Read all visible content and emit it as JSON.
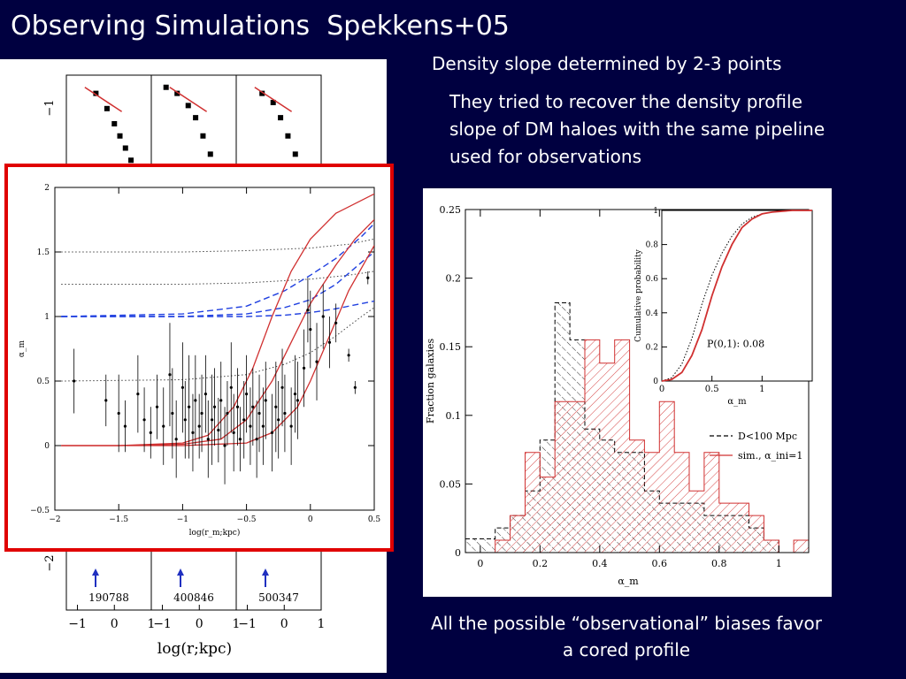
{
  "slide": {
    "title": "Observing Simulations  Spekkens+05",
    "note_top": "Density slope determined by 2-3 points",
    "note_para": "They tried to recover the density profile slope of DM haloes with the same pipeline used for observations",
    "note_bottom": "All the possible “observational” biases favor a cored profile"
  },
  "background_color": "#000040",
  "highlight_color": "#e00000",
  "chart_data": [
    {
      "id": "background-mini-panels",
      "type": "scatter",
      "xlabel": "log(r;kpc)",
      "panel_labels": [
        "190788",
        "400846",
        "500347"
      ],
      "x_tick_labels": [
        "−1",
        "0",
        "1"
      ],
      "y_tick_labels": [
        "−1",
        "−2"
      ],
      "series": [
        {
          "values": [
            [
              -0.5,
              -1.1
            ],
            [
              -0.2,
              -1.35
            ],
            [
              0.0,
              -1.6
            ],
            [
              0.15,
              -1.8
            ],
            [
              0.3,
              -2.0
            ],
            [
              0.45,
              -2.2
            ]
          ]
        },
        {
          "values": [
            [
              -0.9,
              -1.0
            ],
            [
              -0.6,
              -1.1
            ],
            [
              -0.3,
              -1.3
            ],
            [
              -0.1,
              -1.5
            ],
            [
              0.1,
              -1.8
            ],
            [
              0.3,
              -2.1
            ]
          ]
        },
        {
          "values": [
            [
              -0.6,
              -1.1
            ],
            [
              -0.3,
              -1.25
            ],
            [
              -0.1,
              -1.5
            ],
            [
              0.1,
              -1.8
            ],
            [
              0.3,
              -2.1
            ]
          ]
        }
      ]
    },
    {
      "id": "alpha-vs-radius",
      "type": "scatter",
      "xlabel": "log(r_m;kpc)",
      "ylabel": "α_m",
      "xlim": [
        -2,
        0.5
      ],
      "ylim": [
        -0.5,
        2
      ],
      "x_ticks": [
        -2,
        -1.5,
        -1,
        -0.5,
        0,
        0.5
      ],
      "y_ticks": [
        -0.5,
        0,
        0.5,
        1,
        1.5,
        2
      ],
      "x_tick_labels": [
        "−2",
        "−1.5",
        "−1",
        "−0.5",
        "0",
        "0.5"
      ],
      "y_tick_labels": [
        "−0.5",
        "0",
        "0.5",
        "1",
        "1.5",
        "2"
      ],
      "reference_colors": {
        "red": "#d03030",
        "blue": "#2040e0",
        "dotted": "#444444"
      },
      "red_curves": [
        [
          [
            -1.95,
            0.0
          ],
          [
            -1.5,
            0.0
          ],
          [
            -1.0,
            0.02
          ],
          [
            -0.8,
            0.08
          ],
          [
            -0.6,
            0.3
          ],
          [
            -0.45,
            0.6
          ],
          [
            -0.3,
            1.0
          ],
          [
            -0.15,
            1.35
          ],
          [
            0.0,
            1.6
          ],
          [
            0.2,
            1.8
          ],
          [
            0.5,
            1.95
          ]
        ],
        [
          [
            -1.95,
            0.0
          ],
          [
            -1.5,
            0.0
          ],
          [
            -1.0,
            0.01
          ],
          [
            -0.7,
            0.05
          ],
          [
            -0.5,
            0.2
          ],
          [
            -0.3,
            0.5
          ],
          [
            -0.15,
            0.8
          ],
          [
            0.0,
            1.1
          ],
          [
            0.2,
            1.4
          ],
          [
            0.35,
            1.6
          ],
          [
            0.5,
            1.75
          ]
        ],
        [
          [
            -1.95,
            0.0
          ],
          [
            -1.5,
            0.0
          ],
          [
            -1.0,
            0.0
          ],
          [
            -0.5,
            0.02
          ],
          [
            -0.3,
            0.1
          ],
          [
            -0.1,
            0.3
          ],
          [
            0.0,
            0.5
          ],
          [
            0.15,
            0.85
          ],
          [
            0.3,
            1.2
          ],
          [
            0.5,
            1.55
          ]
        ]
      ],
      "blue_curves": [
        [
          [
            -1.95,
            1.0
          ],
          [
            -1.0,
            1.02
          ],
          [
            -0.5,
            1.08
          ],
          [
            -0.2,
            1.2
          ],
          [
            0.0,
            1.32
          ],
          [
            0.2,
            1.45
          ],
          [
            0.4,
            1.62
          ],
          [
            0.5,
            1.72
          ]
        ],
        [
          [
            -1.95,
            1.0
          ],
          [
            -1.0,
            1.0
          ],
          [
            -0.5,
            1.02
          ],
          [
            -0.2,
            1.07
          ],
          [
            0.0,
            1.13
          ],
          [
            0.2,
            1.25
          ],
          [
            0.4,
            1.42
          ],
          [
            0.5,
            1.5
          ]
        ],
        [
          [
            -1.95,
            1.0
          ],
          [
            -1.0,
            1.0
          ],
          [
            -0.5,
            1.0
          ],
          [
            -0.2,
            1.01
          ],
          [
            0.0,
            1.03
          ],
          [
            0.2,
            1.06
          ],
          [
            0.4,
            1.1
          ],
          [
            0.5,
            1.12
          ]
        ]
      ],
      "dotted_curves": [
        [
          [
            -1.95,
            1.5
          ],
          [
            -1.0,
            1.5
          ],
          [
            -0.5,
            1.51
          ],
          [
            0.0,
            1.53
          ],
          [
            0.3,
            1.56
          ],
          [
            0.5,
            1.6
          ]
        ],
        [
          [
            -1.95,
            1.25
          ],
          [
            -1.0,
            1.25
          ],
          [
            -0.5,
            1.26
          ],
          [
            0.0,
            1.29
          ],
          [
            0.3,
            1.32
          ],
          [
            0.5,
            1.35
          ]
        ],
        [
          [
            -1.95,
            0.5
          ],
          [
            -1.0,
            0.51
          ],
          [
            -0.5,
            0.55
          ],
          [
            -0.2,
            0.63
          ],
          [
            0.0,
            0.72
          ],
          [
            0.2,
            0.85
          ],
          [
            0.4,
            1.0
          ],
          [
            0.5,
            1.07
          ]
        ]
      ],
      "points": [
        {
          "x": -1.85,
          "y": 0.5,
          "err": 0.25
        },
        {
          "x": -1.6,
          "y": 0.35,
          "err": 0.2
        },
        {
          "x": -1.5,
          "y": 0.25,
          "err": 0.3
        },
        {
          "x": -1.45,
          "y": 0.15,
          "err": 0.2
        },
        {
          "x": -1.35,
          "y": 0.4,
          "err": 0.3
        },
        {
          "x": -1.3,
          "y": 0.2,
          "err": 0.25
        },
        {
          "x": -1.25,
          "y": 0.1,
          "err": 0.2
        },
        {
          "x": -1.2,
          "y": 0.3,
          "err": 0.25
        },
        {
          "x": -1.15,
          "y": 0.15,
          "err": 0.3
        },
        {
          "x": -1.1,
          "y": 0.55,
          "err": 0.4
        },
        {
          "x": -1.08,
          "y": 0.25,
          "err": 0.35
        },
        {
          "x": -1.05,
          "y": 0.05,
          "err": 0.3
        },
        {
          "x": -1.0,
          "y": 0.45,
          "err": 0.35
        },
        {
          "x": -0.98,
          "y": 0.2,
          "err": 0.3
        },
        {
          "x": -0.95,
          "y": 0.3,
          "err": 0.4
        },
        {
          "x": -0.92,
          "y": 0.1,
          "err": 0.3
        },
        {
          "x": -0.9,
          "y": 0.35,
          "err": 0.35
        },
        {
          "x": -0.87,
          "y": 0.15,
          "err": 0.25
        },
        {
          "x": -0.85,
          "y": 0.25,
          "err": 0.3
        },
        {
          "x": -0.82,
          "y": 0.4,
          "err": 0.3
        },
        {
          "x": -0.8,
          "y": 0.05,
          "err": 0.3
        },
        {
          "x": -0.77,
          "y": 0.2,
          "err": 0.35
        },
        {
          "x": -0.75,
          "y": 0.3,
          "err": 0.3
        },
        {
          "x": -0.72,
          "y": 0.12,
          "err": 0.25
        },
        {
          "x": -0.7,
          "y": 0.35,
          "err": 0.3
        },
        {
          "x": -0.67,
          "y": 0.0,
          "err": 0.3
        },
        {
          "x": -0.65,
          "y": 0.25,
          "err": 0.25
        },
        {
          "x": -0.62,
          "y": 0.45,
          "err": 0.35
        },
        {
          "x": -0.6,
          "y": 0.1,
          "err": 0.3
        },
        {
          "x": -0.57,
          "y": 0.3,
          "err": 0.3
        },
        {
          "x": -0.55,
          "y": 0.05,
          "err": 0.25
        },
        {
          "x": -0.52,
          "y": 0.2,
          "err": 0.3
        },
        {
          "x": -0.5,
          "y": 0.4,
          "err": 0.3
        },
        {
          "x": -0.47,
          "y": 0.15,
          "err": 0.3
        },
        {
          "x": -0.45,
          "y": 0.3,
          "err": 0.3
        },
        {
          "x": -0.42,
          "y": 0.05,
          "err": 0.3
        },
        {
          "x": -0.4,
          "y": 0.25,
          "err": 0.3
        },
        {
          "x": -0.37,
          "y": 0.15,
          "err": 0.3
        },
        {
          "x": -0.35,
          "y": 0.35,
          "err": 0.3
        },
        {
          "x": -0.3,
          "y": 0.1,
          "err": 0.3
        },
        {
          "x": -0.27,
          "y": 0.3,
          "err": 0.35
        },
        {
          "x": -0.25,
          "y": 0.2,
          "err": 0.3
        },
        {
          "x": -0.22,
          "y": 0.45,
          "err": 0.3
        },
        {
          "x": -0.2,
          "y": 0.25,
          "err": 0.3
        },
        {
          "x": -0.15,
          "y": 0.15,
          "err": 0.3
        },
        {
          "x": -0.12,
          "y": 0.4,
          "err": 0.3
        },
        {
          "x": -0.1,
          "y": 0.35,
          "err": 0.3
        },
        {
          "x": -0.05,
          "y": 0.6,
          "err": 0.3
        },
        {
          "x": -0.02,
          "y": 1.05,
          "err": 0.25
        },
        {
          "x": 0.0,
          "y": 0.9,
          "err": 0.3
        },
        {
          "x": 0.05,
          "y": 0.65,
          "err": 0.3
        },
        {
          "x": 0.1,
          "y": 1.0,
          "err": 0.25
        },
        {
          "x": 0.15,
          "y": 0.8,
          "err": 0.2
        },
        {
          "x": 0.2,
          "y": 0.95,
          "err": 0.15
        },
        {
          "x": 0.3,
          "y": 0.7,
          "err": 0.05
        },
        {
          "x": 0.35,
          "y": 0.45,
          "err": 0.05
        },
        {
          "x": 0.45,
          "y": 1.3,
          "err": 0.05
        }
      ]
    },
    {
      "id": "fraction-histogram",
      "type": "bar",
      "xlabel": "α_m",
      "ylabel": "Fraction galaxies",
      "xlim": [
        -0.05,
        1.1
      ],
      "ylim": [
        0,
        0.25
      ],
      "x_ticks": [
        0,
        0.2,
        0.4,
        0.6,
        0.8,
        1
      ],
      "y_ticks": [
        0,
        0.05,
        0.1,
        0.15,
        0.2,
        0.25
      ],
      "x_tick_labels": [
        "0",
        "0.2",
        "0.4",
        "0.6",
        "0.8",
        "1"
      ],
      "y_tick_labels": [
        "0",
        "0.05",
        "0.1",
        "0.15",
        "0.2",
        "0.25"
      ],
      "bin_edges": [
        -0.05,
        0.0,
        0.05,
        0.1,
        0.15,
        0.2,
        0.25,
        0.3,
        0.35,
        0.4,
        0.45,
        0.5,
        0.55,
        0.6,
        0.65,
        0.7,
        0.75,
        0.8,
        0.85,
        0.9,
        0.95,
        1.0,
        1.05,
        1.1
      ],
      "series": [
        {
          "name": "D<100 Mpc",
          "color": "#000000",
          "values": [
            0.01,
            0.01,
            0.018,
            0.027,
            0.045,
            0.082,
            0.182,
            0.155,
            0.09,
            0.082,
            0.073,
            0.073,
            0.045,
            0.036,
            0.036,
            0.036,
            0.027,
            0.027,
            0.027,
            0.018,
            0.009,
            0,
            0
          ]
        },
        {
          "name": "sim., α_ini=1",
          "color": "#d03030",
          "values": [
            0,
            0,
            0.009,
            0.027,
            0.073,
            0.055,
            0.11,
            0.11,
            0.155,
            0.138,
            0.155,
            0.082,
            0.073,
            0.11,
            0.073,
            0.045,
            0.073,
            0.036,
            0.036,
            0.027,
            0.009,
            0,
            0.009
          ]
        }
      ],
      "legend_placement": "lower-right"
    },
    {
      "id": "cumulative-inset",
      "type": "line",
      "xlabel": "α_m",
      "ylabel": "Cumulative probability",
      "xlim": [
        0,
        1.5
      ],
      "ylim": [
        0,
        1
      ],
      "x_ticks": [
        0,
        0.5,
        1
      ],
      "y_ticks": [
        0,
        0.2,
        0.4,
        0.6,
        0.8,
        1
      ],
      "x_tick_labels": [
        "0",
        "0.5",
        "1"
      ],
      "y_tick_labels": [
        "0",
        "0.2",
        "0.4",
        "0.6",
        "0.8",
        "1"
      ],
      "annotation": "P(0,1):  0.08",
      "series": [
        {
          "color": "#000000",
          "values": [
            [
              0.0,
              0.0
            ],
            [
              0.1,
              0.02
            ],
            [
              0.2,
              0.1
            ],
            [
              0.3,
              0.25
            ],
            [
              0.4,
              0.45
            ],
            [
              0.5,
              0.62
            ],
            [
              0.6,
              0.75
            ],
            [
              0.7,
              0.85
            ],
            [
              0.8,
              0.92
            ],
            [
              0.9,
              0.96
            ],
            [
              1.0,
              0.98
            ],
            [
              1.1,
              0.99
            ],
            [
              1.3,
              1.0
            ],
            [
              1.5,
              1.0
            ]
          ]
        },
        {
          "color": "#d03030",
          "values": [
            [
              0.0,
              0.0
            ],
            [
              0.1,
              0.01
            ],
            [
              0.2,
              0.05
            ],
            [
              0.3,
              0.15
            ],
            [
              0.4,
              0.3
            ],
            [
              0.5,
              0.5
            ],
            [
              0.6,
              0.67
            ],
            [
              0.7,
              0.8
            ],
            [
              0.8,
              0.9
            ],
            [
              0.9,
              0.95
            ],
            [
              1.0,
              0.98
            ],
            [
              1.1,
              0.99
            ],
            [
              1.3,
              1.0
            ],
            [
              1.5,
              1.0
            ]
          ]
        }
      ]
    }
  ]
}
